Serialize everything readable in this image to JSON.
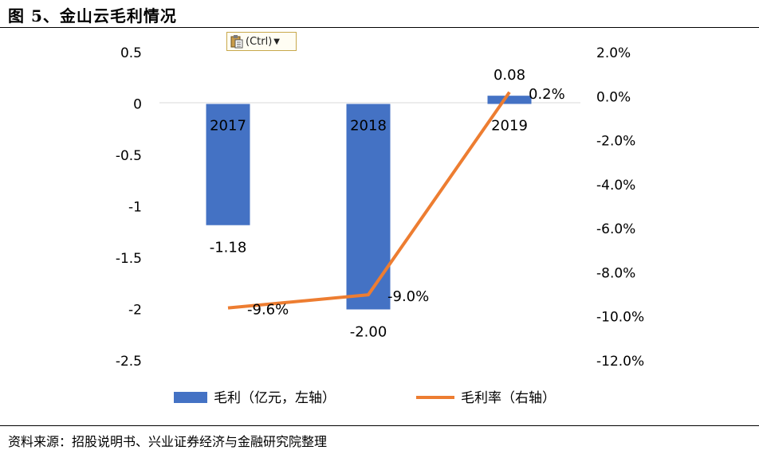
{
  "figure": {
    "title": "图 5、金山云毛利情况",
    "source": "资料来源：招股说明书、兴业证券经济与金融研究院整理"
  },
  "paste_options": {
    "label": "(Ctrl)"
  },
  "chart_data": {
    "type": "bar+line",
    "categories": [
      "2017",
      "2018",
      "2019"
    ],
    "series": [
      {
        "name": "毛利（亿元，左轴）",
        "type": "bar",
        "axis": "left",
        "values": [
          -1.18,
          -2.0,
          0.08
        ],
        "labels": [
          "-1.18",
          "-2.00",
          "0.08"
        ],
        "color": "#4472C4"
      },
      {
        "name": "毛利率（右轴）",
        "type": "line",
        "axis": "right",
        "values": [
          -9.6,
          -9.0,
          0.2
        ],
        "labels": [
          "-9.6%",
          "-9.0%",
          "0.2%"
        ],
        "color": "#ED7D31"
      }
    ],
    "left_axis": {
      "min": -2.5,
      "max": 0.5,
      "ticks": [
        0.5,
        0,
        -0.5,
        -1,
        -1.5,
        -2,
        -2.5
      ],
      "tick_labels": [
        "0.5",
        "0",
        "-0.5",
        "-1",
        "-1.5",
        "-2",
        "-2.5"
      ]
    },
    "right_axis": {
      "min": -12.0,
      "max": 2.0,
      "ticks": [
        2.0,
        0.0,
        -2.0,
        -4.0,
        -6.0,
        -8.0,
        -10.0,
        -12.0
      ],
      "tick_labels": [
        "2.0%",
        "0.0%",
        "-2.0%",
        "-4.0%",
        "-6.0%",
        "-8.0%",
        "-10.0%",
        "-12.0%"
      ]
    },
    "grid": false,
    "legend": "bottom"
  }
}
